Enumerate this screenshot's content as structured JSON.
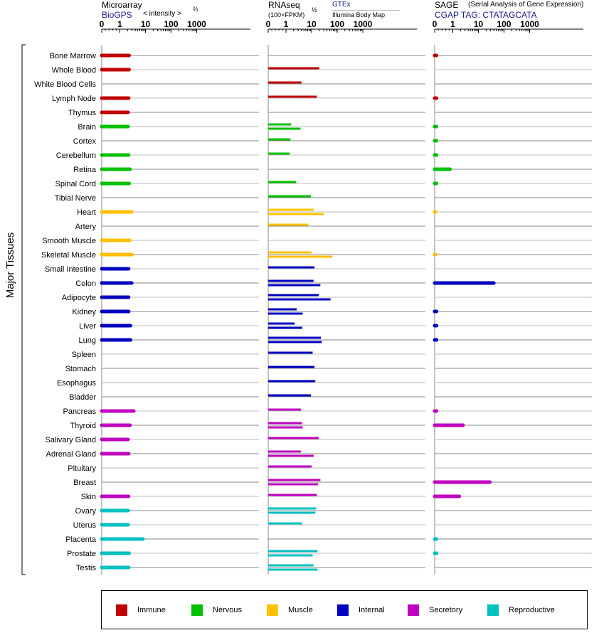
{
  "panels": [
    {
      "id": "microarray",
      "title": "Microarray",
      "title_extra": "< intensity >",
      "exponent": "⅔",
      "source": "BioGPS",
      "ticks": [
        "0",
        "1",
        "10",
        "100",
        "1000"
      ]
    },
    {
      "id": "rnaseq",
      "title": "RNAseq",
      "unit": "(100×FPKM)",
      "exponent": "½",
      "source_top": "GTEx",
      "source_bottom": "Illumina Body Map",
      "ticks": [
        "0",
        "1",
        "10",
        "100",
        "1000"
      ]
    },
    {
      "id": "sage",
      "title": "SAGE",
      "subtitle": "(Serial Analysis of Gene Expression)",
      "source": "CGAP TAG: CTATAGCATA",
      "ticks": [
        "0",
        "1",
        "10",
        "100",
        "1000"
      ]
    }
  ],
  "axis_group_label": "Major Tissues",
  "legend": [
    {
      "key": "immune",
      "label": "Immune",
      "color": "#c00000"
    },
    {
      "key": "nervous",
      "label": "Nervous",
      "color": "#00c000"
    },
    {
      "key": "muscle",
      "label": "Muscle",
      "color": "#ffc000"
    },
    {
      "key": "internal",
      "label": "Internal",
      "color": "#0000c0"
    },
    {
      "key": "secretory",
      "label": "Secretory",
      "color": "#c000c0"
    },
    {
      "key": "reproductive",
      "label": "Reproductive",
      "color": "#00c0c0"
    }
  ],
  "chart_data": {
    "type": "bar",
    "scale": "log",
    "xlim": [
      0,
      1000
    ],
    "categories": [
      "Bone Marrow",
      "Whole Blood",
      "White Blood Cells",
      "Lymph Node",
      "Thymus",
      "Brain",
      "Cortex",
      "Cerebellum",
      "Retina",
      "Spinal Cord",
      "Tibial Nerve",
      "Heart",
      "Artery",
      "Smooth Muscle",
      "Skeletal Muscle",
      "Small Intestine",
      "Colon",
      "Adipocyte",
      "Kidney",
      "Liver",
      "Lung",
      "Spleen",
      "Stomach",
      "Esophagus",
      "Bladder",
      "Pancreas",
      "Thyroid",
      "Salivary Gland",
      "Adrenal Gland",
      "Pituitary",
      "Breast",
      "Skin",
      "Ovary",
      "Uterus",
      "Placenta",
      "Prostate",
      "Testis"
    ],
    "groups": [
      "immune",
      "immune",
      "immune",
      "immune",
      "immune",
      "nervous",
      "nervous",
      "nervous",
      "nervous",
      "nervous",
      "nervous",
      "muscle",
      "muscle",
      "muscle",
      "muscle",
      "internal",
      "internal",
      "internal",
      "internal",
      "internal",
      "internal",
      "internal",
      "internal",
      "internal",
      "internal",
      "secretory",
      "secretory",
      "secretory",
      "secretory",
      "secretory",
      "secretory",
      "secretory",
      "reproductive",
      "reproductive",
      "reproductive",
      "reproductive",
      "reproductive"
    ],
    "series": [
      {
        "panel": "microarray",
        "values": [
          2.3,
          2.3,
          null,
          2.2,
          2.1,
          2.1,
          null,
          2.2,
          2.5,
          2.3,
          null,
          2.9,
          null,
          2.4,
          3.0,
          2.2,
          2.9,
          2.2,
          2.2,
          2.6,
          2.6,
          null,
          null,
          null,
          null,
          3.5,
          2.5,
          2.1,
          2.2,
          null,
          null,
          2.2,
          2.1,
          2.1,
          8.0,
          2.3,
          2.2
        ]
      },
      {
        "panel": "rnaseq_gtex",
        "values": [
          null,
          20,
          4.0,
          16,
          null,
          1.6,
          1.5,
          1.4,
          null,
          2.5,
          9.5,
          12,
          7.5,
          null,
          10,
          13,
          12,
          19,
          2.6,
          2.2,
          23,
          11,
          13,
          14,
          9.5,
          3.8,
          4.2,
          19,
          3.8,
          10,
          22,
          16,
          15,
          4.2,
          null,
          17,
          12
        ]
      },
      {
        "panel": "rnaseq_ibm",
        "values": [
          null,
          null,
          null,
          null,
          null,
          3.7,
          null,
          null,
          null,
          null,
          null,
          30,
          null,
          null,
          65,
          null,
          22,
          55,
          4.5,
          4.3,
          25,
          null,
          null,
          null,
          null,
          null,
          4.5,
          null,
          12,
          null,
          18,
          null,
          14,
          null,
          null,
          11,
          17
        ]
      },
      {
        "panel": "sage",
        "values": [
          0.1,
          null,
          null,
          0.1,
          null,
          0.1,
          0.1,
          0.1,
          0.85,
          0.1,
          null,
          0.05,
          null,
          null,
          0.05,
          null,
          40,
          null,
          0.1,
          0.1,
          0.1,
          null,
          null,
          null,
          null,
          0.1,
          2.5,
          null,
          null,
          null,
          28,
          1.8,
          null,
          null,
          0.1,
          0.1,
          null
        ]
      }
    ]
  }
}
